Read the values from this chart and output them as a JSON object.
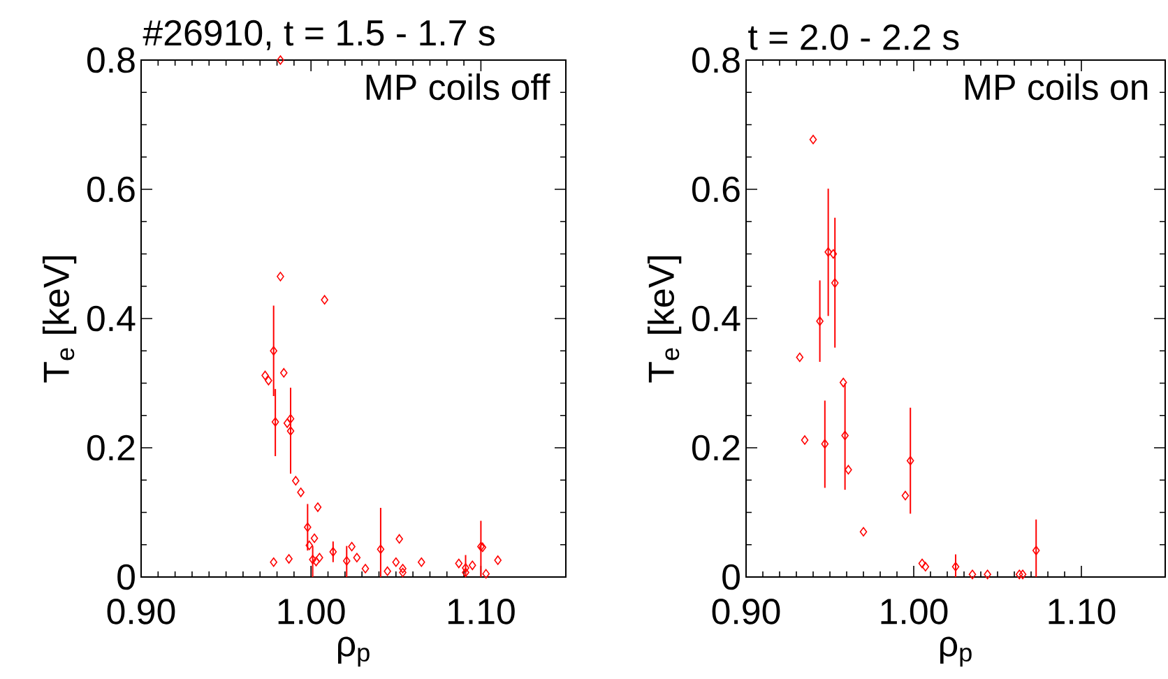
{
  "chart_data": [
    {
      "type": "scatter",
      "title": "#26910, t = 1.5 - 1.7 s",
      "xlabel": "ρ$_{p}$",
      "ylabel": "T$_{e}$ [keV]",
      "annotations": [
        "MP coils off"
      ],
      "color": "#ff0000",
      "marker": "diamond",
      "xlim": [
        0.9,
        1.15
      ],
      "ylim": [
        0,
        0.8
      ],
      "xticks": [
        {
          "value": 0.9,
          "label": "0.90"
        },
        {
          "value": 1.0,
          "label": "1.00"
        },
        {
          "value": 1.1,
          "label": "1.10"
        }
      ],
      "yticks": [
        0,
        0.2,
        0.4,
        0.6,
        0.8
      ],
      "x": [
        0.982,
        0.982,
        1.008,
        0.978,
        0.973,
        0.975,
        0.984,
        0.979,
        0.986,
        0.988,
        0.988,
        0.991,
        0.994,
        1.004,
        0.998,
        1.002,
        0.999,
        1.001,
        1.003,
        1.005,
        0.978,
        0.987,
        1.013,
        1.024,
        1.021,
        1.027,
        1.032,
        1.041,
        1.052,
        1.05,
        1.045,
        1.054,
        1.054,
        1.065,
        1.087,
        1.091,
        1.091,
        1.095,
        1.1,
        1.101,
        1.103,
        1.11
      ],
      "values": [
        0.8,
        0.465,
        0.429,
        0.35,
        0.312,
        0.304,
        0.316,
        0.24,
        0.238,
        0.245,
        0.226,
        0.149,
        0.131,
        0.108,
        0.077,
        0.06,
        0.049,
        0.027,
        0.024,
        0.03,
        0.023,
        0.028,
        0.039,
        0.047,
        0.025,
        0.03,
        0.013,
        0.043,
        0.059,
        0.023,
        0.009,
        0.013,
        0.007,
        0.023,
        0.021,
        0.014,
        0.007,
        0.018,
        0.047,
        0.046,
        0.005,
        0.026
      ],
      "errors": [
        null,
        null,
        null,
        [
          0.28,
          0.42
        ],
        null,
        null,
        null,
        [
          0.187,
          0.291
        ],
        null,
        null,
        [
          0.16,
          0.293
        ],
        null,
        null,
        null,
        [
          0.041,
          0.113
        ],
        null,
        null,
        [
          0.0,
          0.048
        ],
        null,
        null,
        null,
        null,
        [
          0.023,
          0.055
        ],
        null,
        [
          0.0,
          0.048
        ],
        null,
        null,
        [
          0.0,
          0.107
        ],
        null,
        null,
        null,
        null,
        null,
        null,
        null,
        [
          0.0,
          0.034
        ],
        null,
        null,
        [
          0.0,
          0.087
        ],
        null,
        null,
        null
      ]
    },
    {
      "type": "scatter",
      "title": "t = 2.0 - 2.2 s",
      "xlabel": "ρ$_{p}$",
      "ylabel": "T$_{e}$ [keV]",
      "annotations": [
        "MP coils on"
      ],
      "color": "#ff0000",
      "marker": "diamond",
      "xlim": [
        0.9,
        1.15
      ],
      "ylim": [
        0,
        0.8
      ],
      "xticks": [
        {
          "value": 0.9,
          "label": "0.90"
        },
        {
          "value": 1.0,
          "label": "1.00"
        },
        {
          "value": 1.1,
          "label": "1.10"
        }
      ],
      "yticks": [
        0,
        0.2,
        0.4,
        0.6,
        0.8
      ],
      "x": [
        0.94,
        0.949,
        0.952,
        0.953,
        0.944,
        0.932,
        0.958,
        0.959,
        0.935,
        0.947,
        0.961,
        0.998,
        0.995,
        0.97,
        1.005,
        1.007,
        1.025,
        1.035,
        1.044,
        1.063,
        1.065,
        1.073
      ],
      "values": [
        0.677,
        0.503,
        0.5,
        0.455,
        0.396,
        0.34,
        0.301,
        0.219,
        0.212,
        0.206,
        0.166,
        0.18,
        0.126,
        0.07,
        0.021,
        0.016,
        0.016,
        0.004,
        0.004,
        0.004,
        0.004,
        0.041
      ],
      "errors": [
        null,
        [
          0.404,
          0.601
        ],
        null,
        [
          0.355,
          0.556
        ],
        [
          0.333,
          0.459
        ],
        null,
        null,
        [
          0.135,
          0.3
        ],
        null,
        [
          0.138,
          0.273
        ],
        null,
        [
          0.098,
          0.262
        ],
        null,
        null,
        null,
        null,
        [
          0.0,
          0.035
        ],
        null,
        null,
        null,
        null,
        [
          0.0,
          0.089
        ]
      ]
    }
  ]
}
